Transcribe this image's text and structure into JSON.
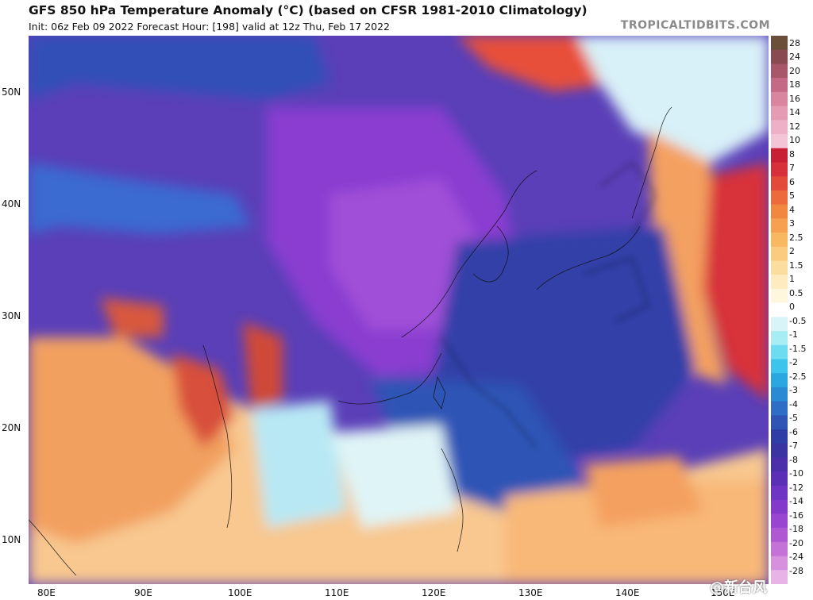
{
  "title": "GFS 850 hPa Temperature Anomaly (°C) (based on CFSR 1981-2010 Climatology)",
  "subtitle": "Init: 06z Feb 09 2022   Forecast Hour: [198]   valid at 12z Thu, Feb 17 2022",
  "credit": "TROPICALTIDBITS.COM",
  "watermark": "@新台风",
  "lat_labels": [
    "50N",
    "40N",
    "30N",
    "20N",
    "10N"
  ],
  "lon_labels": [
    "80E",
    "90E",
    "100E",
    "110E",
    "120E",
    "130E",
    "140E",
    "150E"
  ],
  "colorbar": {
    "labels": [
      "28",
      "24",
      "20",
      "18",
      "16",
      "14",
      "12",
      "10",
      "8",
      "7",
      "6",
      "5",
      "4",
      "3",
      "2.5",
      "2",
      "1.5",
      "1",
      "0.5",
      "0",
      "-0.5",
      "-1",
      "-1.5",
      "-2",
      "-2.5",
      "-3",
      "-4",
      "-5",
      "-6",
      "-7",
      "-8",
      "-10",
      "-12",
      "-14",
      "-16",
      "-18",
      "-20",
      "-24",
      "-28"
    ],
    "colors": [
      "#6b4f3a",
      "#8a4a52",
      "#a8566a",
      "#c46a86",
      "#d985a0",
      "#e59bb4",
      "#eeb0c6",
      "#f3c4d6",
      "#c81f34",
      "#d7303a",
      "#e34a3a",
      "#ec6a3c",
      "#f2873f",
      "#f6a050",
      "#f8b862",
      "#fbcc80",
      "#fcdda0",
      "#feecc0",
      "#fff6de",
      "#ffffff",
      "#d8f4f8",
      "#a8ecf4",
      "#6edcf0",
      "#3cc4ec",
      "#2aa6e0",
      "#2a8ad4",
      "#2e6ec6",
      "#2f54b6",
      "#2f3ea6",
      "#3a34a2",
      "#4a2eaa",
      "#5c30b6",
      "#7034c4",
      "#8438cc",
      "#9a44d2",
      "#b058d4",
      "#c472d8",
      "#d690de",
      "#e8b4e8"
    ]
  }
}
